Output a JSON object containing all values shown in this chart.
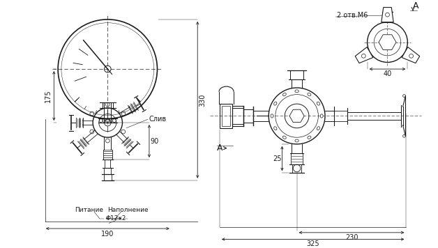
{
  "background_color": "#ffffff",
  "line_color": "#1a1a1a",
  "dim_color": "#1a1a1a",
  "annotations": {
    "dim_175": "175",
    "dim_330": "330",
    "dim_90": "90",
    "dim_190": "190",
    "dim_phi12x2": "Φ12x2",
    "label_pitanie": "Питание",
    "label_napolnenie": "Наполнение",
    "label_sliv": "Слив",
    "label_2otv_m6": "2 отв.M6",
    "label_A_top": "A",
    "label_A_side": "A",
    "dim_40": "40",
    "dim_25": "25",
    "dim_230": "230",
    "dim_325": "325"
  }
}
